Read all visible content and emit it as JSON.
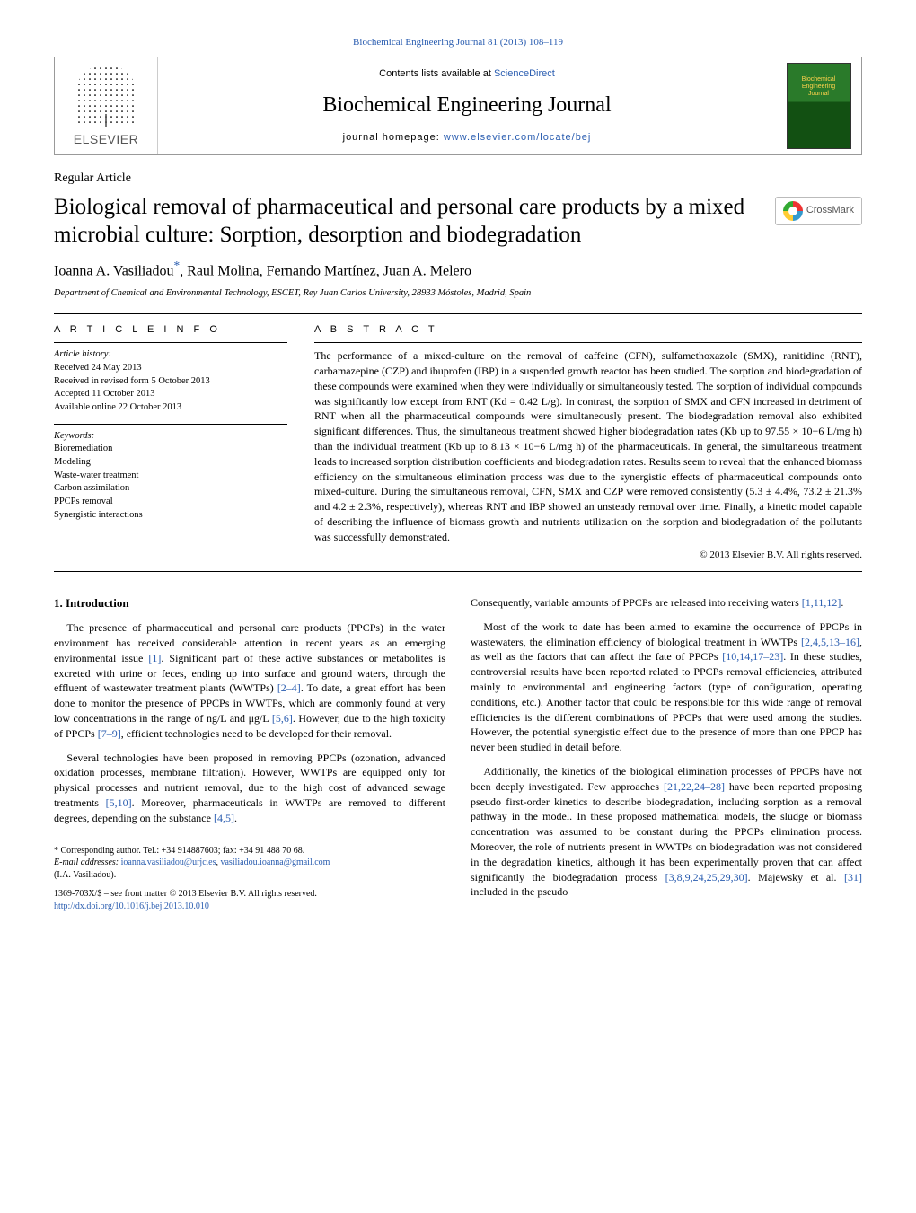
{
  "header": {
    "citation": "Biochemical Engineering Journal 81 (2013) 108–119",
    "contentsPrefix": "Contents lists available at ",
    "contentsLink": "ScienceDirect",
    "journalName": "Biochemical Engineering Journal",
    "homepageLabel": "journal homepage: ",
    "homepageUrl": "www.elsevier.com/locate/bej",
    "publisher": "ELSEVIER",
    "coverText": "Biochemical\nEngineering\nJournal"
  },
  "crossmark": {
    "label": "CrossMark"
  },
  "article": {
    "type": "Regular Article",
    "title": "Biological removal of pharmaceutical and personal care products by a mixed microbial culture: Sorption, desorption and biodegradation",
    "authors": "Ioanna A. Vasiliadou",
    "authorsRest": ", Raul Molina, Fernando Martínez, Juan A. Melero",
    "corrMark": "*",
    "affiliation": "Department of Chemical and Environmental Technology, ESCET, Rey Juan Carlos University, 28933 Móstoles, Madrid, Spain"
  },
  "info": {
    "headingInfo": "A R T I C L E  I N F O",
    "headingAbstract": "A B S T R A C T",
    "historyLabel": "Article history:",
    "history": [
      "Received 24 May 2013",
      "Received in revised form 5 October 2013",
      "Accepted 11 October 2013",
      "Available online 22 October 2013"
    ],
    "keywordsLabel": "Keywords:",
    "keywords": [
      "Bioremediation",
      "Modeling",
      "Waste-water treatment",
      "Carbon assimilation",
      "PPCPs removal",
      "Synergistic interactions"
    ]
  },
  "abstract": {
    "text": "The performance of a mixed-culture on the removal of caffeine (CFN), sulfamethoxazole (SMX), ranitidine (RNT), carbamazepine (CZP) and ibuprofen (IBP) in a suspended growth reactor has been studied. The sorption and biodegradation of these compounds were examined when they were individually or simultaneously tested. The sorption of individual compounds was significantly low except from RNT (Kd = 0.42 L/g). In contrast, the sorption of SMX and CFN increased in detriment of RNT when all the pharmaceutical compounds were simultaneously present. The biodegradation removal also exhibited significant differences. Thus, the simultaneous treatment showed higher biodegradation rates (Kb up to 97.55 × 10−6 L/mg h) than the individual treatment (Kb up to 8.13 × 10−6 L/mg h) of the pharmaceuticals. In general, the simultaneous treatment leads to increased sorption distribution coefficients and biodegradation rates. Results seem to reveal that the enhanced biomass efficiency on the simultaneous elimination process was due to the synergistic effects of pharmaceutical compounds onto mixed-culture. During the simultaneous removal, CFN, SMX and CZP were removed consistently (5.3 ± 4.4%, 73.2 ± 21.3% and 4.2 ± 2.3%, respectively), whereas RNT and IBP showed an unsteady removal over time. Finally, a kinetic model capable of describing the influence of biomass growth and nutrients utilization on the sorption and biodegradation of the pollutants was successfully demonstrated.",
    "copyright": "© 2013 Elsevier B.V. All rights reserved."
  },
  "body": {
    "introHeading": "1.  Introduction",
    "leftParas": [
      "The presence of pharmaceutical and personal care products (PPCPs) in the water environment has received considerable attention in recent years as an emerging environmental issue [1]. Significant part of these active substances or metabolites is excreted with urine or feces, ending up into surface and ground waters, through the effluent of wastewater treatment plants (WWTPs) [2–4]. To date, a great effort has been done to monitor the presence of PPCPs in WWTPs, which are commonly found at very low concentrations in the range of ng/L and μg/L [5,6]. However, due to the high toxicity of PPCPs [7–9], efficient technologies need to be developed for their removal.",
      "Several technologies have been proposed in removing PPCPs (ozonation, advanced oxidation processes, membrane filtration). However, WWTPs are equipped only for physical processes and nutrient removal, due to the high cost of advanced sewage treatments [5,10]. Moreover, pharmaceuticals in WWTPs are removed to different degrees, depending on the substance [4,5]."
    ],
    "rightParas": [
      "Consequently, variable amounts of PPCPs are released into receiving waters [1,11,12].",
      "Most of the work to date has been aimed to examine the occurrence of PPCPs in wastewaters, the elimination efficiency of biological treatment in WWTPs [2,4,5,13–16], as well as the factors that can affect the fate of PPCPs [10,14,17–23]. In these studies, controversial results have been reported related to PPCPs removal efficiencies, attributed mainly to environmental and engineering factors (type of configuration, operating conditions, etc.). Another factor that could be responsible for this wide range of removal efficiencies is the different combinations of PPCPs that were used among the studies. However, the potential synergistic effect due to the presence of more than one PPCP has never been studied in detail before.",
      "Additionally, the kinetics of the biological elimination processes of PPCPs have not been deeply investigated. Few approaches [21,22,24–28] have been reported proposing pseudo first-order kinetics to describe biodegradation, including sorption as a removal pathway in the model. In these proposed mathematical models, the sludge or biomass concentration was assumed to be constant during the PPCPs elimination process. Moreover, the role of nutrients present in WWTPs on biodegradation was not considered in the degradation kinetics, although it has been experimentally proven that can affect significantly the biodegradation process [3,8,9,24,25,29,30]. Majewsky et al. [31] included in the pseudo"
    ]
  },
  "footnotes": {
    "correspond": "* Corresponding author. Tel.: +34 914887603; fax: +34 91 488 70 68.",
    "emailLabel": "E-mail addresses: ",
    "email1": "ioanna.vasiliadou@urjc.es",
    "emailSep": ", ",
    "email2": "vasiliadou.ioanna@gmail.com",
    "emailAttr": "(I.A. Vasiliadou).",
    "issn": "1369-703X/$ – see front matter © 2013 Elsevier B.V. All rights reserved.",
    "doi": "http://dx.doi.org/10.1016/j.bej.2013.10.010"
  },
  "refLinks": {
    "l0": "[1]",
    "l1": "[2–4]",
    "l2": "[5,6]",
    "l3": "[7–9]",
    "l4": "[5,10]",
    "l5": "[4,5]",
    "r0": "[1,11,12]",
    "r1": "[2,4,5,13–16]",
    "r2": "[10,14,17–23]",
    "r3": "[21,22,24–28]",
    "r4": "[3,8,9,24,25,29,30]",
    "r5": "[31]"
  },
  "colors": {
    "link": "#2a5db0",
    "text": "#000000",
    "border": "#999999"
  }
}
